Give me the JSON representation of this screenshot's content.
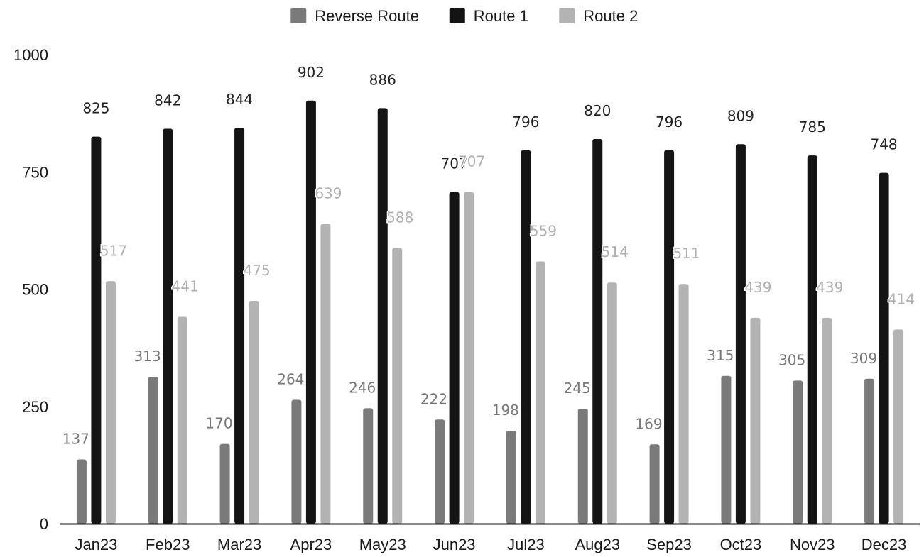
{
  "chart_data": {
    "type": "bar",
    "title": "",
    "xlabel": "",
    "ylabel": "",
    "ylim": [
      0,
      1000
    ],
    "yticks": [
      0,
      250,
      500,
      750,
      1000
    ],
    "grid": false,
    "legend_position": "top-center",
    "categories": [
      "Jan23",
      "Feb23",
      "Mar23",
      "Apr23",
      "May23",
      "Jun23",
      "Jul23",
      "Aug23",
      "Sep23",
      "Oct23",
      "Nov23",
      "Dec23"
    ],
    "series": [
      {
        "name": "Reverse Route",
        "color": "#7a7a7a",
        "label_color": "#777777",
        "values": [
          137,
          313,
          170,
          264,
          246,
          222,
          198,
          245,
          169,
          315,
          305,
          309
        ]
      },
      {
        "name": "Route 1",
        "color": "#141414",
        "label_color": "#222222",
        "values": [
          825,
          842,
          844,
          902,
          886,
          707,
          796,
          820,
          796,
          809,
          785,
          748
        ]
      },
      {
        "name": "Route 2",
        "color": "#b3b3b3",
        "label_color": "#b0b0b0",
        "values": [
          517,
          441,
          475,
          639,
          588,
          707,
          559,
          514,
          511,
          439,
          439,
          414
        ]
      }
    ]
  }
}
